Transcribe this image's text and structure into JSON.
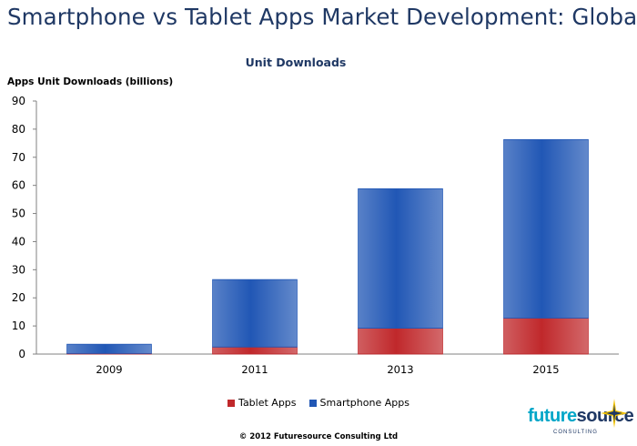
{
  "header": {
    "title": "Smartphone vs Tablet Apps Market Development: Global"
  },
  "footer": {
    "copyright": "© 2012 Futuresource Consulting Ltd",
    "logo_word_future": "future",
    "logo_word_source": "source",
    "logo_sub": "CONSULTING"
  },
  "colors": {
    "title": "#1f3864",
    "tablet": "#c0282b",
    "smartphone": "#2157b5",
    "logo_future": "#00a6c8",
    "logo_source": "#1f3864"
  },
  "chart_data": {
    "type": "bar",
    "stacked": true,
    "title": "",
    "subtitle": "Unit Downloads",
    "ylabel": "Apps Unit Downloads (billions)",
    "xlabel": "",
    "categories": [
      "2009",
      "2011",
      "2013",
      "2015"
    ],
    "series": [
      {
        "name": "Tablet Apps",
        "color": "#c0282b",
        "values": [
          0.2,
          2.5,
          9.2,
          12.8
        ]
      },
      {
        "name": "Smartphone Apps",
        "color": "#2157b5",
        "values": [
          3.3,
          24.0,
          49.6,
          63.5
        ]
      }
    ],
    "ylim": [
      0,
      90
    ],
    "yticks": [
      0,
      10,
      20,
      30,
      40,
      50,
      60,
      70,
      80,
      90
    ],
    "grid": false,
    "legend": "bottom"
  }
}
